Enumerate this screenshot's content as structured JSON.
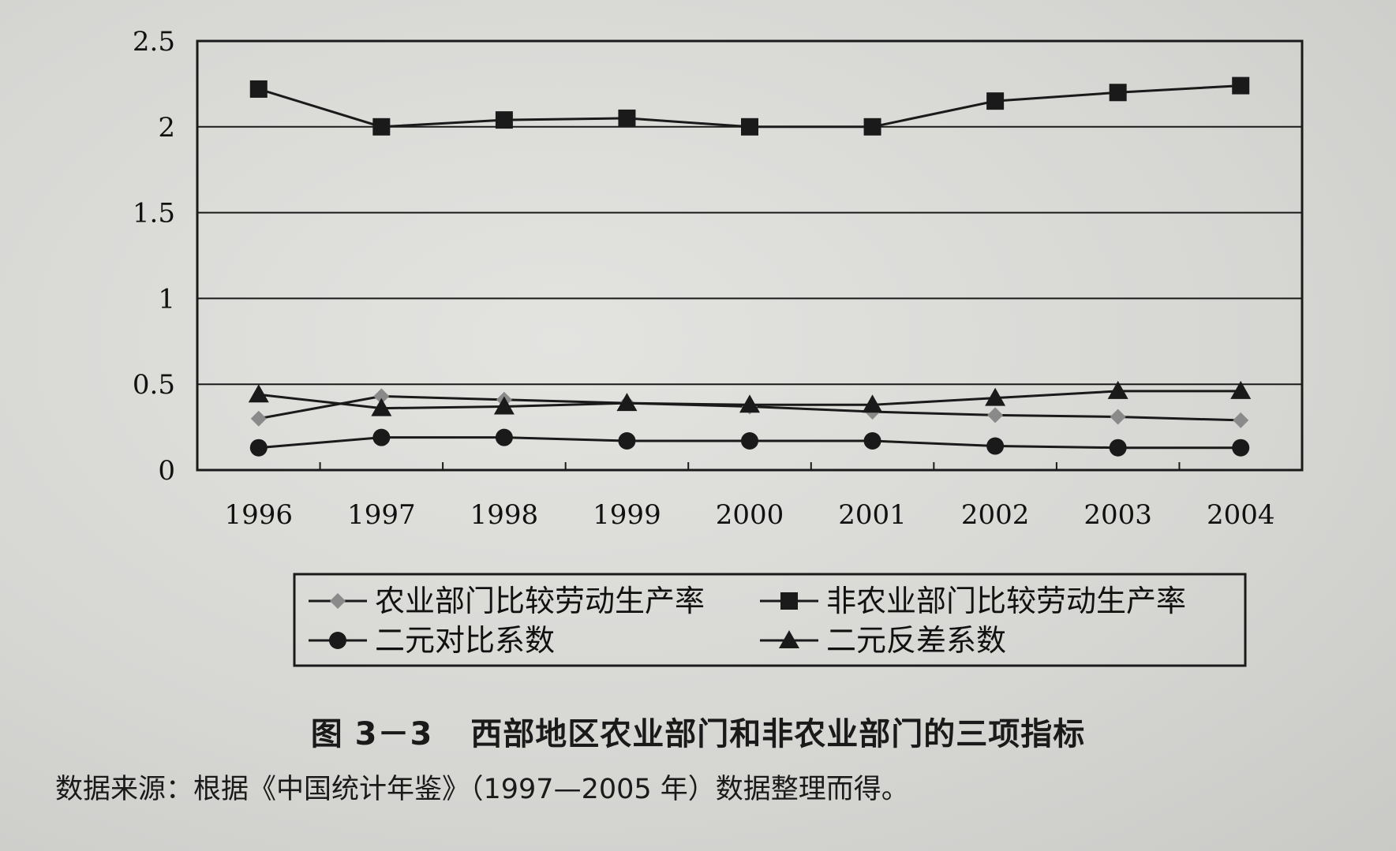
{
  "chart_data": {
    "type": "line",
    "categories": [
      "1996",
      "1997",
      "1998",
      "1999",
      "2000",
      "2001",
      "2002",
      "2003",
      "2004"
    ],
    "ylim": [
      0,
      2.5
    ],
    "yticks": [
      "0",
      "0.5",
      "1",
      "1.5",
      "2",
      "2.5"
    ],
    "grid": true,
    "legend_position": "bottom",
    "series": [
      {
        "name": "农业部门比较劳动生产率",
        "marker": "diamond",
        "color": "#8a8a8a",
        "values": [
          0.3,
          0.43,
          0.41,
          0.39,
          0.37,
          0.34,
          0.32,
          0.31,
          0.29
        ]
      },
      {
        "name": "非农业部门比较劳动生产率",
        "marker": "square",
        "color": "#1a1a1a",
        "values": [
          2.22,
          2.0,
          2.04,
          2.05,
          2.0,
          2.0,
          2.15,
          2.2,
          2.24
        ]
      },
      {
        "name": "二元对比系数",
        "marker": "circle",
        "color": "#1a1a1a",
        "values": [
          0.13,
          0.19,
          0.19,
          0.17,
          0.17,
          0.17,
          0.14,
          0.13,
          0.13
        ]
      },
      {
        "name": "二元反差系数",
        "marker": "triangle",
        "color": "#1a1a1a",
        "values": [
          0.44,
          0.36,
          0.37,
          0.39,
          0.38,
          0.38,
          0.42,
          0.46,
          0.46
        ]
      }
    ]
  },
  "caption": {
    "number": "图 3－3",
    "title": "西部地区农业部门和非农业部门的三项指标"
  },
  "source_note": "数据来源：根据《中国统计年鉴》（1997—2005 年）数据整理而得。"
}
